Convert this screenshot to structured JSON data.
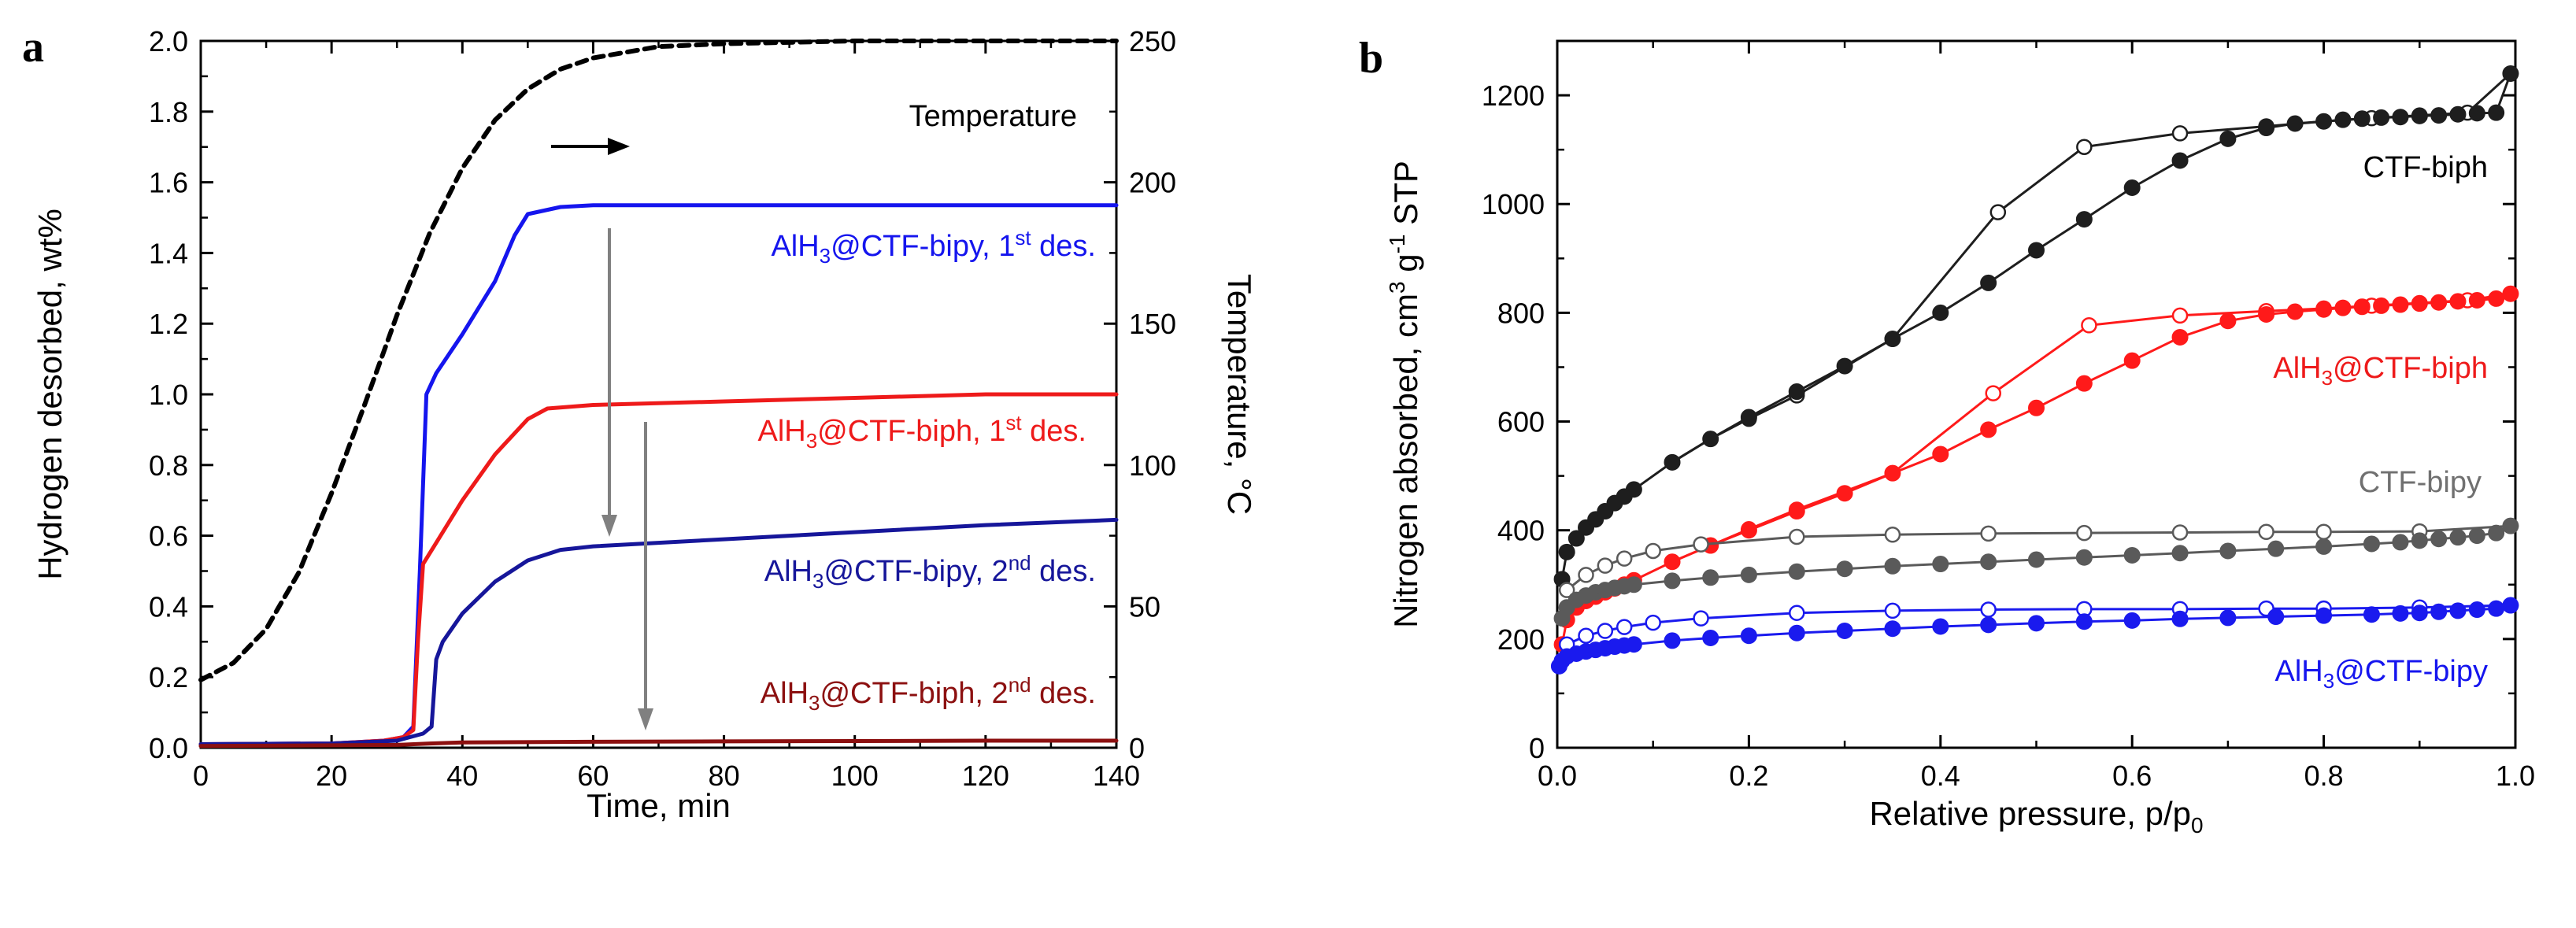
{
  "figure": {
    "panel_a_label": "a",
    "panel_b_label": "b"
  },
  "chart_data": [
    {
      "type": "line",
      "panel": "a",
      "xlabel": "Time, min",
      "ylabel": "Hydrogen desorbed, wt%",
      "y2label": "Temperature, °C",
      "xlim": [
        0,
        140
      ],
      "ylim": [
        0,
        2.0
      ],
      "y2lim": [
        0,
        250
      ],
      "xticks": [
        0,
        20,
        40,
        60,
        80,
        100,
        120,
        140
      ],
      "yticks": [
        0.0,
        0.2,
        0.4,
        0.6,
        0.8,
        1.0,
        1.2,
        1.4,
        1.6,
        1.8,
        2.0
      ],
      "y2ticks": [
        0,
        50,
        100,
        150,
        200,
        250
      ],
      "series": [
        {
          "name": "Temperature",
          "label": "Temperature",
          "color": "#000000",
          "dashed": true,
          "axis": "right",
          "x": [
            0,
            5,
            10,
            15,
            20,
            25,
            30,
            35,
            40,
            45,
            50,
            55,
            60,
            70,
            80,
            100,
            120,
            140
          ],
          "y": [
            24,
            30,
            42,
            62,
            90,
            121,
            153,
            182,
            205,
            222,
            233,
            240,
            244,
            248,
            249,
            250,
            250,
            250
          ]
        },
        {
          "name": "AlH3@CTF-bipy, 1st des.",
          "label_base": "AlH",
          "label_sub": "3",
          "label_mid": "@CTF-bipy, 1",
          "label_sup": "st",
          "label_end": " des.",
          "color": "#1515ee",
          "axis": "left",
          "x": [
            0,
            20,
            28,
            31,
            32.5,
            33.5,
            34.5,
            36,
            40,
            45,
            48,
            50,
            55,
            60,
            80,
            100,
            120,
            140
          ],
          "y": [
            0.01,
            0.012,
            0.02,
            0.03,
            0.06,
            0.5,
            1.0,
            1.06,
            1.17,
            1.32,
            1.45,
            1.51,
            1.53,
            1.535,
            1.535,
            1.535,
            1.535,
            1.535
          ]
        },
        {
          "name": "AlH3@CTF-biph, 1st des.",
          "label_base": "AlH",
          "label_sub": "3",
          "label_mid": "@CTF-biph, 1",
          "label_sup": "st",
          "label_end": " des.",
          "color": "#ee1a1a",
          "axis": "left",
          "x": [
            0,
            20,
            28,
            31,
            32.5,
            33.2,
            34,
            36,
            40,
            45,
            50,
            53,
            60,
            80,
            100,
            120,
            140
          ],
          "y": [
            0.01,
            0.012,
            0.02,
            0.03,
            0.05,
            0.3,
            0.52,
            0.58,
            0.7,
            0.83,
            0.93,
            0.96,
            0.97,
            0.98,
            0.99,
            1.0,
            1.0
          ]
        },
        {
          "name": "AlH3@CTF-bipy, 2nd des.",
          "label_base": "AlH",
          "label_sub": "3",
          "label_mid": "@CTF-bipy, 2",
          "label_sup": "nd",
          "label_end": " des.",
          "color": "#16169a",
          "axis": "left",
          "x": [
            0,
            20,
            30,
            34,
            35.3,
            36,
            37,
            40,
            45,
            50,
            55,
            60,
            80,
            100,
            120,
            140
          ],
          "y": [
            0.01,
            0.012,
            0.02,
            0.04,
            0.06,
            0.25,
            0.3,
            0.38,
            0.47,
            0.53,
            0.56,
            0.57,
            0.59,
            0.61,
            0.63,
            0.645
          ]
        },
        {
          "name": "AlH3@CTF-biph, 2nd des.",
          "label_base": "AlH",
          "label_sub": "3",
          "label_mid": "@CTF-biph, 2",
          "label_sup": "nd",
          "label_end": " des.",
          "color": "#8c1010",
          "axis": "left",
          "x": [
            0,
            30,
            35,
            40,
            60,
            80,
            100,
            120,
            140
          ],
          "y": [
            0.005,
            0.008,
            0.012,
            0.015,
            0.017,
            0.018,
            0.019,
            0.02,
            0.02
          ]
        }
      ]
    },
    {
      "type": "scatter",
      "panel": "b",
      "xlabel_main": "Relative pressure, p/p",
      "xlabel_sub": "0",
      "ylabel_main": "Nitrogen absorbed, cm",
      "ylabel_sup3": "3",
      "ylabel_mid": " g",
      "ylabel_supm1": "-1",
      "ylabel_end": " STP",
      "xlim": [
        0,
        1.0
      ],
      "ylim": [
        0,
        1300
      ],
      "xticks": [
        0.0,
        0.2,
        0.4,
        0.6,
        0.8,
        1.0
      ],
      "yticks": [
        0,
        200,
        400,
        600,
        800,
        1000,
        1200
      ],
      "series": [
        {
          "name": "CTF-biph",
          "label": "CTF-biph",
          "color": "#1e1e1e",
          "label_color": "#000000",
          "adsorption_x": [
            0.005,
            0.01,
            0.02,
            0.03,
            0.04,
            0.05,
            0.06,
            0.07,
            0.08,
            0.12,
            0.16,
            0.2,
            0.25,
            0.3,
            0.35,
            0.4,
            0.45,
            0.5,
            0.55,
            0.6,
            0.65,
            0.7,
            0.74,
            0.77,
            0.8,
            0.82,
            0.84,
            0.86,
            0.88,
            0.9,
            0.92,
            0.94,
            0.96,
            0.98,
            0.995
          ],
          "adsorption_y": [
            310,
            360,
            385,
            405,
            420,
            435,
            450,
            462,
            475,
            525,
            568,
            608,
            655,
            702,
            752,
            800,
            855,
            915,
            972,
            1030,
            1080,
            1120,
            1140,
            1148,
            1152,
            1155,
            1157,
            1159,
            1160,
            1162,
            1163,
            1165,
            1167,
            1168,
            1240
          ],
          "desorption_x": [
            0.995,
            0.95,
            0.9,
            0.85,
            0.8,
            0.74,
            0.65,
            0.55,
            0.46,
            0.35,
            0.25,
            0.2,
            0.16,
            0.12
          ],
          "desorption_y": [
            1240,
            1168,
            1163,
            1158,
            1152,
            1143,
            1130,
            1105,
            985,
            752,
            648,
            605,
            568,
            525
          ]
        },
        {
          "name": "AlH3@CTF-biph",
          "label_base": "AlH",
          "label_sub": "3",
          "label_end": "@CTF-biph",
          "color": "#ff1a1a",
          "label_color": "#ee1a1a",
          "adsorption_x": [
            0.005,
            0.01,
            0.02,
            0.03,
            0.04,
            0.05,
            0.06,
            0.07,
            0.08,
            0.12,
            0.16,
            0.2,
            0.25,
            0.3,
            0.35,
            0.4,
            0.45,
            0.5,
            0.55,
            0.6,
            0.65,
            0.7,
            0.74,
            0.77,
            0.8,
            0.82,
            0.84,
            0.86,
            0.88,
            0.9,
            0.92,
            0.94,
            0.96,
            0.98,
            0.995
          ],
          "adsorption_y": [
            190,
            235,
            258,
            270,
            278,
            286,
            293,
            300,
            308,
            342,
            372,
            400,
            435,
            468,
            505,
            540,
            585,
            625,
            670,
            712,
            755,
            785,
            797,
            802,
            806,
            809,
            811,
            813,
            815,
            817,
            819,
            821,
            823,
            826,
            835
          ],
          "desorption_x": [
            0.995,
            0.95,
            0.9,
            0.85,
            0.8,
            0.74,
            0.65,
            0.555,
            0.455,
            0.35,
            0.25,
            0.2,
            0.16,
            0.12
          ],
          "desorption_y": [
            835,
            823,
            818,
            813,
            808,
            803,
            795,
            777,
            652,
            505,
            438,
            402,
            372,
            342
          ]
        },
        {
          "name": "CTF-bipy",
          "label": "CTF-bipy",
          "color": "#5a5a5a",
          "label_color": "#707070",
          "adsorption_x": [
            0.005,
            0.01,
            0.02,
            0.03,
            0.04,
            0.05,
            0.06,
            0.07,
            0.08,
            0.12,
            0.16,
            0.2,
            0.25,
            0.3,
            0.35,
            0.4,
            0.45,
            0.5,
            0.55,
            0.6,
            0.65,
            0.7,
            0.75,
            0.8,
            0.85,
            0.88,
            0.9,
            0.92,
            0.94,
            0.96,
            0.98,
            0.995
          ],
          "adsorption_y": [
            238,
            258,
            272,
            280,
            286,
            290,
            294,
            297,
            300,
            307,
            313,
            318,
            324,
            329,
            334,
            338,
            342,
            346,
            350,
            354,
            358,
            362,
            366,
            370,
            375,
            378,
            381,
            384,
            387,
            390,
            395,
            408
          ],
          "desorption_x": [
            0.995,
            0.9,
            0.8,
            0.74,
            0.65,
            0.55,
            0.45,
            0.35,
            0.25,
            0.15,
            0.1,
            0.07,
            0.05,
            0.03,
            0.01
          ],
          "desorption_y": [
            408,
            398,
            397,
            397,
            396,
            395,
            394,
            392,
            388,
            374,
            362,
            348,
            335,
            318,
            290
          ]
        },
        {
          "name": "AlH3@CTF-bipy",
          "label_base": "AlH",
          "label_sub": "3",
          "label_end": "@CTF-bipy",
          "color": "#1a1aee",
          "label_color": "#1515ee",
          "adsorption_x": [
            0.002,
            0.005,
            0.01,
            0.02,
            0.03,
            0.04,
            0.05,
            0.06,
            0.07,
            0.08,
            0.12,
            0.16,
            0.2,
            0.25,
            0.3,
            0.35,
            0.4,
            0.45,
            0.5,
            0.55,
            0.6,
            0.65,
            0.7,
            0.75,
            0.8,
            0.85,
            0.88,
            0.9,
            0.92,
            0.94,
            0.96,
            0.98,
            0.995
          ],
          "adsorption_y": [
            150,
            160,
            168,
            173,
            177,
            180,
            183,
            186,
            188,
            190,
            197,
            202,
            206,
            211,
            215,
            219,
            223,
            226,
            229,
            232,
            234,
            237,
            239,
            241,
            243,
            245,
            247,
            248,
            250,
            252,
            254,
            256,
            262
          ],
          "desorption_x": [
            0.995,
            0.9,
            0.8,
            0.74,
            0.65,
            0.55,
            0.45,
            0.35,
            0.25,
            0.15,
            0.1,
            0.07,
            0.05,
            0.03,
            0.01
          ],
          "desorption_y": [
            262,
            258,
            256,
            256,
            255,
            255,
            254,
            252,
            248,
            238,
            230,
            222,
            215,
            206,
            190
          ]
        }
      ]
    }
  ]
}
